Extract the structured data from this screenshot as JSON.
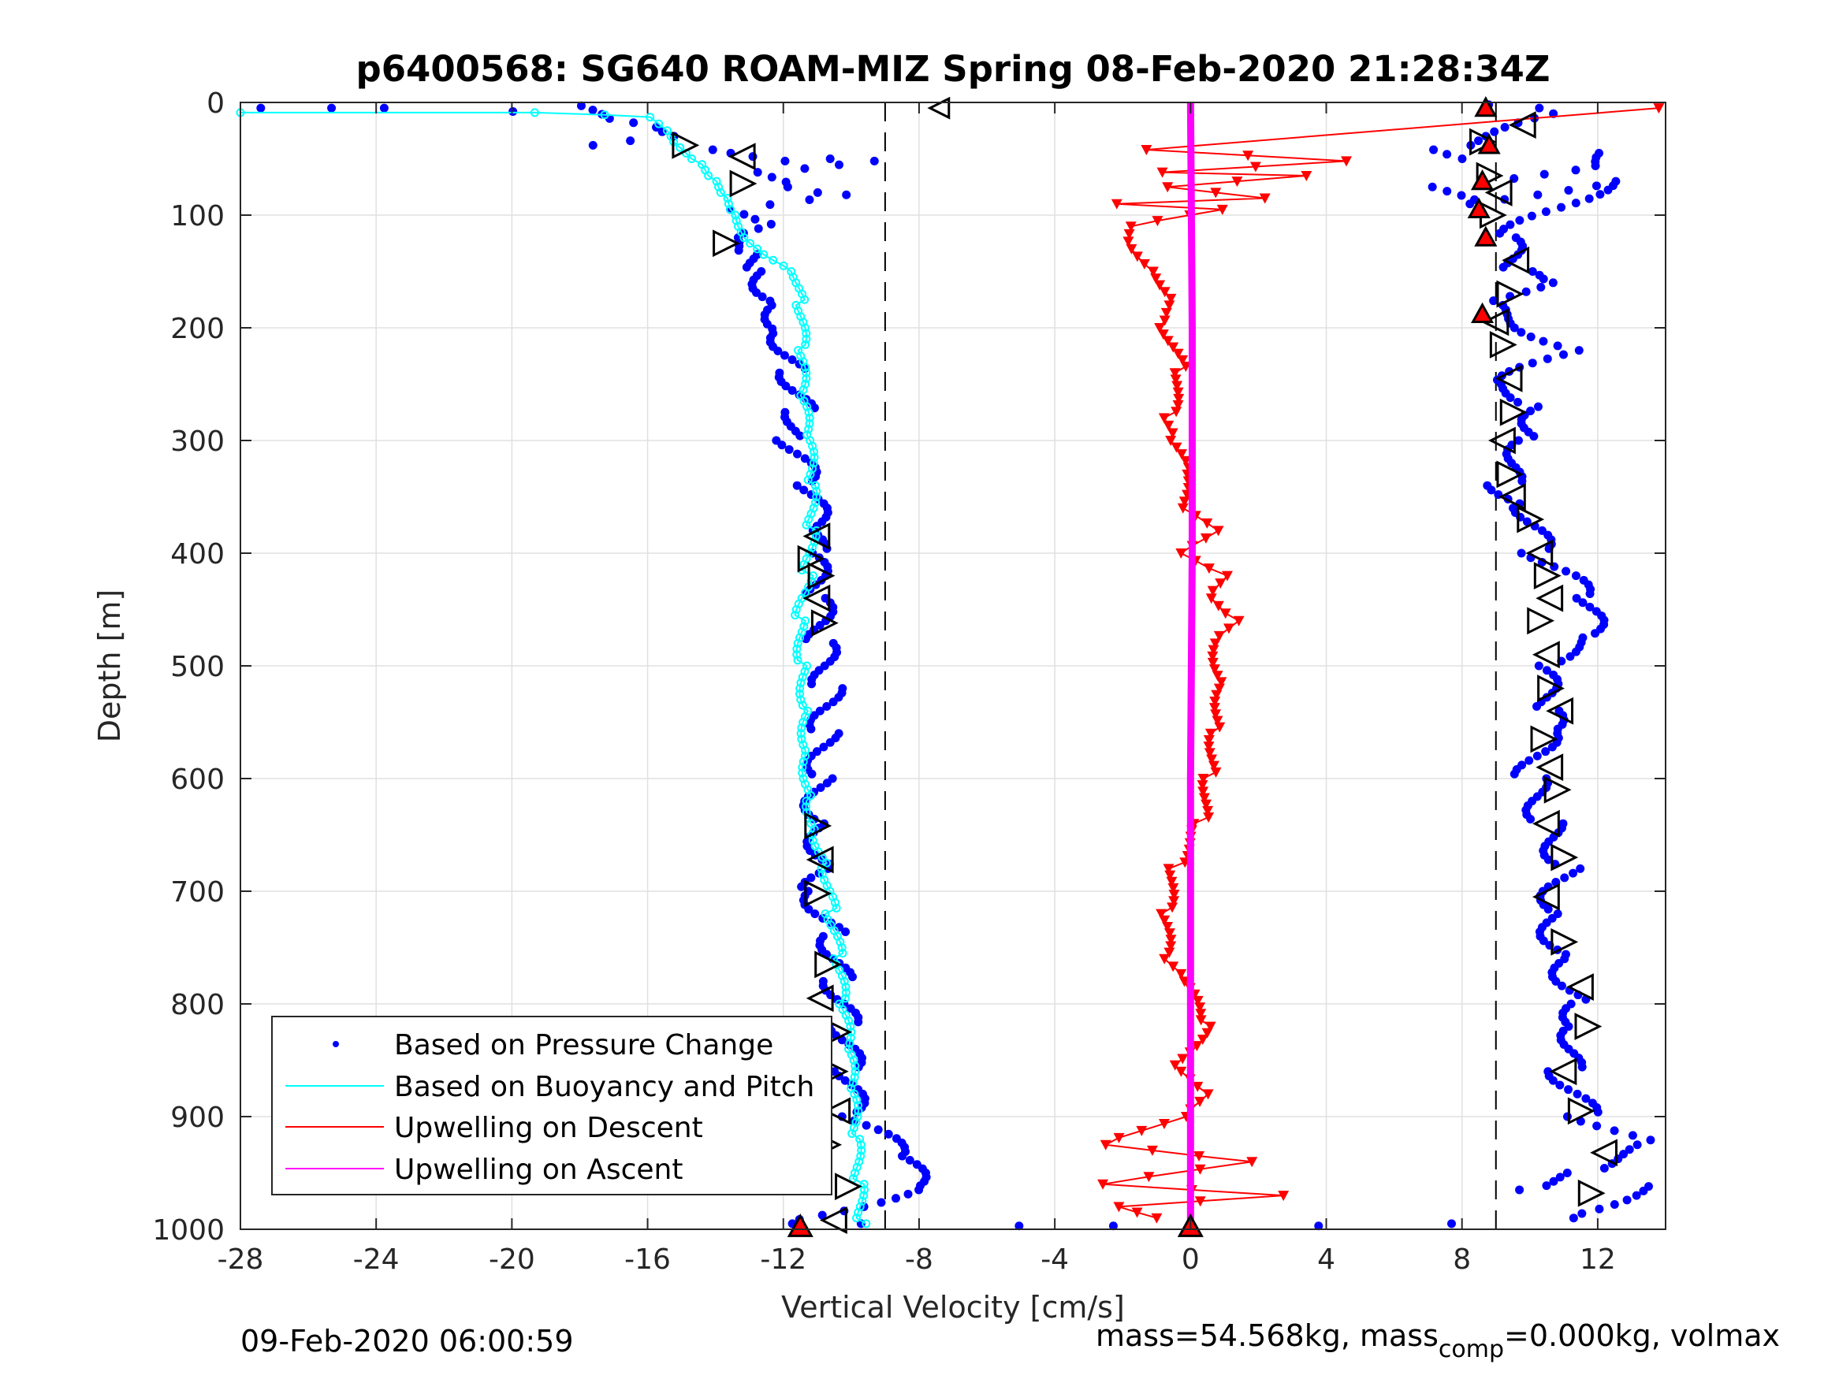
{
  "chart_data": {
    "type": "scatter",
    "title": "p6400568: SG640 ROAM-MIZ Spring 08-Feb-2020 21:28:34Z",
    "xlabel": "Vertical Velocity [cm/s]",
    "ylabel": "Depth [m]",
    "xlim": [
      -28,
      14
    ],
    "ylim": [
      0,
      1000
    ],
    "y_reversed": true,
    "grid": true,
    "xticks": [
      "-28",
      "-24",
      "-20",
      "-16",
      "-12",
      "-8",
      "-4",
      "0",
      "4",
      "8",
      "12"
    ],
    "yticks": [
      "0",
      "100",
      "200",
      "300",
      "400",
      "500",
      "600",
      "700",
      "800",
      "900",
      "1000"
    ],
    "legend_position": "bottom-left",
    "reference_lines_x": [
      -9,
      9
    ],
    "series": [
      {
        "name": "Based on Pressure Change",
        "color": "#0000ff",
        "marker": "dot",
        "descent_points": [
          [
            -27.4,
            5
          ],
          [
            -25.5,
            5
          ],
          [
            -24.1,
            5
          ],
          [
            -20.4,
            8
          ],
          [
            -18.4,
            3
          ],
          [
            -16.8,
            18
          ],
          [
            -16.0,
            22
          ],
          [
            -15.3,
            30
          ],
          [
            -17.5,
            38
          ],
          [
            -13.8,
            42
          ],
          [
            -12.5,
            48
          ],
          [
            -11.5,
            52
          ],
          [
            -10.2,
            50
          ],
          [
            -9.0,
            52
          ],
          [
            -12.6,
            62
          ],
          [
            -11.9,
            75
          ],
          [
            -11.2,
            80
          ],
          [
            -10.5,
            82
          ],
          [
            -14.0,
            95
          ],
          [
            -12.8,
            108
          ],
          [
            -13.7,
            120
          ],
          [
            -13.0,
            135
          ],
          [
            -12.7,
            150
          ],
          [
            -12.2,
            180
          ],
          [
            -12.0,
            205
          ],
          [
            -11.7,
            240
          ],
          [
            -11.5,
            275
          ],
          [
            -11.8,
            300
          ],
          [
            -11.3,
            340
          ],
          [
            -11.0,
            380
          ],
          [
            -11.2,
            400
          ],
          [
            -11.0,
            440
          ],
          [
            -10.9,
            480
          ],
          [
            -10.7,
            520
          ],
          [
            -10.8,
            560
          ],
          [
            -10.9,
            600
          ],
          [
            -11.0,
            640
          ],
          [
            -10.7,
            680
          ],
          [
            -11.1,
            700
          ],
          [
            -10.5,
            740
          ],
          [
            -10.4,
            780
          ],
          [
            -10.2,
            820
          ],
          [
            -10.1,
            860
          ],
          [
            -10.0,
            900
          ],
          [
            -8.4,
            935
          ],
          [
            -8.1,
            965
          ],
          [
            -12.0,
            995
          ],
          [
            -10.1,
            995
          ],
          [
            -5.5,
            997
          ],
          [
            -2.7,
            997
          ],
          [
            3.6,
            997
          ]
        ],
        "ascent_points": [
          [
            8.7,
            2
          ],
          [
            10.4,
            5
          ],
          [
            11.0,
            10
          ],
          [
            7.6,
            42
          ],
          [
            8.5,
            50
          ],
          [
            12.5,
            45
          ],
          [
            11.7,
            60
          ],
          [
            7.3,
            75
          ],
          [
            8.2,
            90
          ],
          [
            12.3,
            70
          ],
          [
            9.2,
            120
          ],
          [
            9.6,
            150
          ],
          [
            10.2,
            160
          ],
          [
            8.8,
            180
          ],
          [
            11.2,
            220
          ],
          [
            9.1,
            250
          ],
          [
            10.4,
            270
          ],
          [
            10.0,
            300
          ],
          [
            9.2,
            340
          ],
          [
            10.0,
            360
          ],
          [
            10.2,
            400
          ],
          [
            11.7,
            440
          ],
          [
            11.7,
            475
          ],
          [
            10.2,
            500
          ],
          [
            10.6,
            540
          ],
          [
            10.4,
            560
          ],
          [
            10.0,
            600
          ],
          [
            10.5,
            640
          ],
          [
            11.1,
            680
          ],
          [
            10.6,
            720
          ],
          [
            11.0,
            760
          ],
          [
            11.4,
            800
          ],
          [
            11.5,
            820
          ],
          [
            11.0,
            860
          ],
          [
            11.6,
            900
          ],
          [
            13.6,
            925
          ],
          [
            11.4,
            950
          ],
          [
            9.8,
            965
          ],
          [
            13.4,
            962
          ],
          [
            11.0,
            990
          ],
          [
            7.2,
            995
          ]
        ]
      },
      {
        "name": "Based on Buoyancy and Pitch",
        "color": "#00ffff",
        "marker": "circle-line",
        "descent_points": [
          [
            -28.0,
            9
          ],
          [
            -19.4,
            9
          ],
          [
            -17.4,
            11
          ],
          [
            -16.1,
            13
          ],
          [
            -15.6,
            25
          ],
          [
            -15.2,
            40
          ],
          [
            -14.5,
            55
          ],
          [
            -14.0,
            70
          ],
          [
            -13.6,
            85
          ],
          [
            -13.3,
            100
          ],
          [
            -13.0,
            120
          ],
          [
            -12.4,
            135
          ],
          [
            -11.6,
            150
          ],
          [
            -11.5,
            180
          ],
          [
            -11.5,
            220
          ],
          [
            -11.5,
            260
          ],
          [
            -11.3,
            300
          ],
          [
            -11.2,
            340
          ],
          [
            -11.2,
            380
          ],
          [
            -11.3,
            420
          ],
          [
            -11.5,
            460
          ],
          [
            -11.4,
            500
          ],
          [
            -11.3,
            540
          ],
          [
            -11.3,
            580
          ],
          [
            -11.2,
            620
          ],
          [
            -11.0,
            650
          ],
          [
            -10.7,
            680
          ],
          [
            -10.6,
            720
          ],
          [
            -10.4,
            760
          ],
          [
            -10.3,
            800
          ],
          [
            -10.1,
            840
          ],
          [
            -10.0,
            880
          ],
          [
            -9.9,
            920
          ],
          [
            -9.8,
            960
          ],
          [
            -9.7,
            995
          ]
        ]
      },
      {
        "name": "Upwelling on Descent",
        "color": "#ff0000",
        "marker": "triangle-down-line",
        "points": [
          [
            13.8,
            5
          ],
          [
            -1.3,
            42
          ],
          [
            4.5,
            52
          ],
          [
            -1.0,
            62
          ],
          [
            3.2,
            65
          ],
          [
            -0.9,
            75
          ],
          [
            2.0,
            85
          ],
          [
            -2.3,
            90
          ],
          [
            0.9,
            95
          ],
          [
            -1.7,
            110
          ],
          [
            -1.6,
            130
          ],
          [
            -0.9,
            150
          ],
          [
            -0.4,
            180
          ],
          [
            -0.7,
            200
          ],
          [
            -0.3,
            240
          ],
          [
            -0.7,
            280
          ],
          [
            -0.6,
            300
          ],
          [
            -0.2,
            330
          ],
          [
            -0.4,
            360
          ],
          [
            0.6,
            380
          ],
          [
            -0.5,
            400
          ],
          [
            0.9,
            420
          ],
          [
            0.5,
            440
          ],
          [
            1.4,
            460
          ],
          [
            0.8,
            480
          ],
          [
            1.0,
            520
          ],
          [
            0.8,
            560
          ],
          [
            0.6,
            600
          ],
          [
            0.3,
            640
          ],
          [
            -0.5,
            680
          ],
          [
            -0.8,
            720
          ],
          [
            -0.8,
            760
          ],
          [
            -0.3,
            780
          ],
          [
            0.4,
            820
          ],
          [
            -0.5,
            860
          ],
          [
            0.3,
            880
          ],
          [
            -0.3,
            900
          ],
          [
            -2.6,
            925
          ],
          [
            1.8,
            940
          ],
          [
            -2.5,
            960
          ],
          [
            2.9,
            970
          ],
          [
            -1.9,
            980
          ],
          [
            -0.8,
            990
          ]
        ]
      },
      {
        "name": "Upwelling on Ascent",
        "color": "#ff00ff",
        "marker": "line",
        "points": [
          [
            0.0,
            0
          ],
          [
            0.05,
            200
          ],
          [
            0.05,
            400
          ],
          [
            0.0,
            600
          ],
          [
            0.0,
            800
          ],
          [
            0.0,
            1000
          ]
        ]
      }
    ],
    "triangle_markers": {
      "descent_right": [
        [
          -14.9,
          38
        ],
        [
          -13.2,
          48
        ],
        [
          -13.2,
          72
        ],
        [
          -13.7,
          125
        ],
        [
          -11.0,
          385
        ],
        [
          -11.2,
          405
        ],
        [
          -10.9,
          420
        ],
        [
          -11.0,
          440
        ],
        [
          -10.8,
          462
        ],
        [
          -11.0,
          642
        ],
        [
          -10.9,
          672
        ],
        [
          -11.0,
          702
        ],
        [
          -10.7,
          765
        ],
        [
          -10.9,
          795
        ],
        [
          -10.4,
          825
        ],
        [
          -10.5,
          860
        ],
        [
          -10.4,
          895
        ],
        [
          -10.7,
          925
        ],
        [
          -10.1,
          962
        ],
        [
          -10.5,
          992
        ]
      ],
      "ascent": [
        [
          8.6,
          35
        ],
        [
          9.8,
          20
        ],
        [
          8.8,
          65
        ],
        [
          9.1,
          80
        ],
        [
          8.9,
          100
        ],
        [
          9.6,
          140
        ],
        [
          9.4,
          170
        ],
        [
          9.0,
          195
        ],
        [
          9.2,
          215
        ],
        [
          9.4,
          245
        ],
        [
          9.5,
          275
        ],
        [
          9.2,
          300
        ],
        [
          9.4,
          330
        ],
        [
          9.5,
          350
        ],
        [
          10.0,
          370
        ],
        [
          10.3,
          400
        ],
        [
          10.5,
          420
        ],
        [
          10.6,
          440
        ],
        [
          10.3,
          460
        ],
        [
          10.5,
          490
        ],
        [
          10.6,
          520
        ],
        [
          10.9,
          540
        ],
        [
          10.4,
          565
        ],
        [
          10.6,
          590
        ],
        [
          10.8,
          610
        ],
        [
          10.5,
          640
        ],
        [
          11.0,
          670
        ],
        [
          10.5,
          705
        ],
        [
          11.0,
          745
        ],
        [
          11.5,
          785
        ],
        [
          11.7,
          820
        ],
        [
          11.0,
          860
        ],
        [
          11.5,
          895
        ],
        [
          12.2,
          932
        ],
        [
          11.8,
          968
        ]
      ],
      "descent_end_red": [
        [
          -11.5,
          998
        ]
      ],
      "ascent_red": [
        [
          8.7,
          5
        ],
        [
          8.8,
          38
        ],
        [
          8.6,
          70
        ],
        [
          8.5,
          95
        ],
        [
          8.7,
          120
        ],
        [
          8.6,
          188
        ]
      ],
      "zero_red": [
        [
          0,
          998
        ]
      ],
      "surface_open": [
        [
          -7.4,
          5
        ]
      ]
    }
  },
  "footer": {
    "left": "09-Feb-2020 06:00:59",
    "right_prefix": "mass=54.568kg, mass",
    "right_subscript": "comp",
    "right_suffix": "=0.000kg, volmax"
  }
}
